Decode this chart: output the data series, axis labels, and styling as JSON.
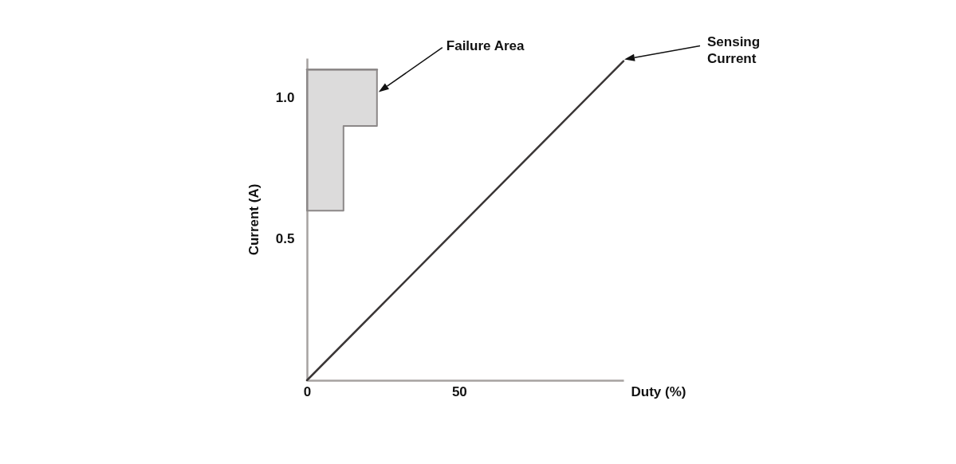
{
  "chart_data": {
    "type": "line",
    "xlabel": "Duty (%)",
    "ylabel": "Current (A)",
    "xlim": [
      0,
      104
    ],
    "ylim": [
      0,
      1.14
    ],
    "xticks": [
      0,
      50
    ],
    "yticks": [
      0.5,
      {
        "value": 1,
        "label": "1.0"
      }
    ],
    "series": [
      {
        "name": "Failure Area",
        "color": "#8c8888",
        "x": [
          0,
          12,
          12,
          23
        ],
        "values": [
          1.1,
          1.1,
          1.1,
          1.1
        ],
        "lower": [
          0.6,
          0.6,
          0.9,
          0.9
        ],
        "upper": [
          1.1,
          1.1,
          1.1,
          1.1
        ]
      },
      {
        "name": "Sensing Current",
        "color": "#3a3636",
        "x": [
          0,
          104
        ],
        "values": [
          0,
          1.13
        ]
      }
    ]
  }
}
